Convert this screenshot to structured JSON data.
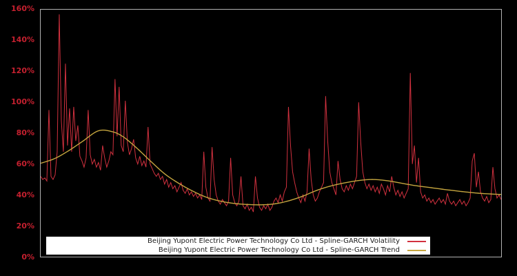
{
  "figure": {
    "background": "#000000",
    "plot_border_color": "#b3b3b3"
  },
  "y_axis": {
    "label_color": "#c5202f",
    "tick_labels_top_to_bottom": [
      "160%",
      "140%",
      "120%",
      "100%",
      "80%",
      "60%",
      "40%",
      "20%",
      "0%"
    ]
  },
  "legend": {
    "background": "#ffffff",
    "text_color": "#1a1a1a",
    "entries": [
      {
        "label": "Beijing Yupont Electric Power Technology Co Ltd - Spline-GARCH Volatility",
        "color": "#d2313f"
      },
      {
        "label": "Beijing Yupont Electric Power Technology Co Ltd - Spline-GARCH Trend",
        "color": "#c6a63f"
      }
    ]
  },
  "chart_data": {
    "type": "line",
    "title": "",
    "xlabel": "",
    "ylabel": "",
    "ylim": [
      0,
      160
    ],
    "y_ticks_percent": [
      0,
      20,
      40,
      60,
      80,
      100,
      120,
      140,
      160
    ],
    "x_axis_labels": "none",
    "grid": false,
    "background": "#000000",
    "legend_position": "lower center inside plot",
    "series": [
      {
        "name": "Beijing Yupont Electric Power Technology Co Ltd - Spline-GARCH Volatility",
        "color": "#d2313f",
        "unit": "%",
        "style": "jagged",
        "values": [
          52,
          50,
          51,
          49,
          95,
          52,
          50,
          53,
          68,
          157,
          88,
          68,
          125,
          72,
          96,
          68,
          97,
          75,
          85,
          65,
          62,
          58,
          64,
          95,
          66,
          60,
          63,
          58,
          61,
          56,
          72,
          64,
          58,
          62,
          68,
          66,
          115,
          78,
          110,
          72,
          68,
          101,
          74,
          66,
          70,
          76,
          64,
          60,
          65,
          59,
          62,
          58,
          84,
          60,
          57,
          54,
          52,
          54,
          50,
          52,
          47,
          50,
          45,
          48,
          44,
          46,
          42,
          45,
          48,
          43,
          41,
          44,
          40,
          42,
          39,
          41,
          38,
          40,
          37,
          68,
          45,
          38,
          36,
          71,
          50,
          40,
          36,
          34,
          37,
          35,
          33,
          36,
          64,
          40,
          35,
          33,
          36,
          52,
          33,
          31,
          34,
          30,
          32,
          29,
          52,
          38,
          32,
          30,
          33,
          31,
          34,
          30,
          32,
          36,
          38,
          35,
          40,
          36,
          42,
          45,
          97,
          72,
          55,
          48,
          42,
          38,
          35,
          40,
          36,
          42,
          70,
          50,
          40,
          36,
          38,
          42,
          45,
          48,
          104,
          75,
          55,
          48,
          44,
          40,
          62,
          50,
          44,
          42,
          46,
          43,
          47,
          44,
          48,
          52,
          100,
          74,
          55,
          48,
          44,
          47,
          43,
          46,
          42,
          45,
          41,
          47,
          44,
          40,
          46,
          42,
          52,
          45,
          40,
          43,
          39,
          42,
          38,
          41,
          44,
          119,
          60,
          72,
          48,
          64,
          42,
          38,
          40,
          36,
          38,
          35,
          37,
          34,
          36,
          38,
          35,
          37,
          34,
          41,
          36,
          34,
          36,
          33,
          35,
          37,
          34,
          36,
          33,
          35,
          38,
          62,
          67,
          45,
          55,
          42,
          38,
          36,
          39,
          35,
          37,
          58,
          44,
          38,
          40,
          37
        ]
      },
      {
        "name": "Beijing Yupont Electric Power Technology Co Ltd - Spline-GARCH Trend",
        "color": "#c6a63f",
        "unit": "%",
        "style": "smooth-spline",
        "control_points_fraction_value": [
          [
            0.0,
            60.5
          ],
          [
            0.03,
            63.5
          ],
          [
            0.06,
            68.5
          ],
          [
            0.09,
            74.5
          ],
          [
            0.125,
            81.5
          ],
          [
            0.155,
            81.0
          ],
          [
            0.18,
            77.5
          ],
          [
            0.21,
            70.0
          ],
          [
            0.24,
            61.5
          ],
          [
            0.27,
            53.5
          ],
          [
            0.3,
            47.5
          ],
          [
            0.33,
            42.5
          ],
          [
            0.36,
            38.5
          ],
          [
            0.39,
            36.0
          ],
          [
            0.42,
            34.5
          ],
          [
            0.45,
            33.8
          ],
          [
            0.48,
            33.6
          ],
          [
            0.51,
            34.3
          ],
          [
            0.54,
            36.3
          ],
          [
            0.57,
            39.3
          ],
          [
            0.6,
            43.0
          ],
          [
            0.63,
            45.8
          ],
          [
            0.66,
            47.8
          ],
          [
            0.69,
            49.3
          ],
          [
            0.72,
            50.0
          ],
          [
            0.75,
            49.3
          ],
          [
            0.78,
            47.8
          ],
          [
            0.81,
            46.2
          ],
          [
            0.84,
            45.0
          ],
          [
            0.87,
            43.8
          ],
          [
            0.9,
            42.7
          ],
          [
            0.93,
            41.7
          ],
          [
            0.96,
            40.9
          ],
          [
            1.0,
            40.3
          ]
        ]
      }
    ]
  }
}
